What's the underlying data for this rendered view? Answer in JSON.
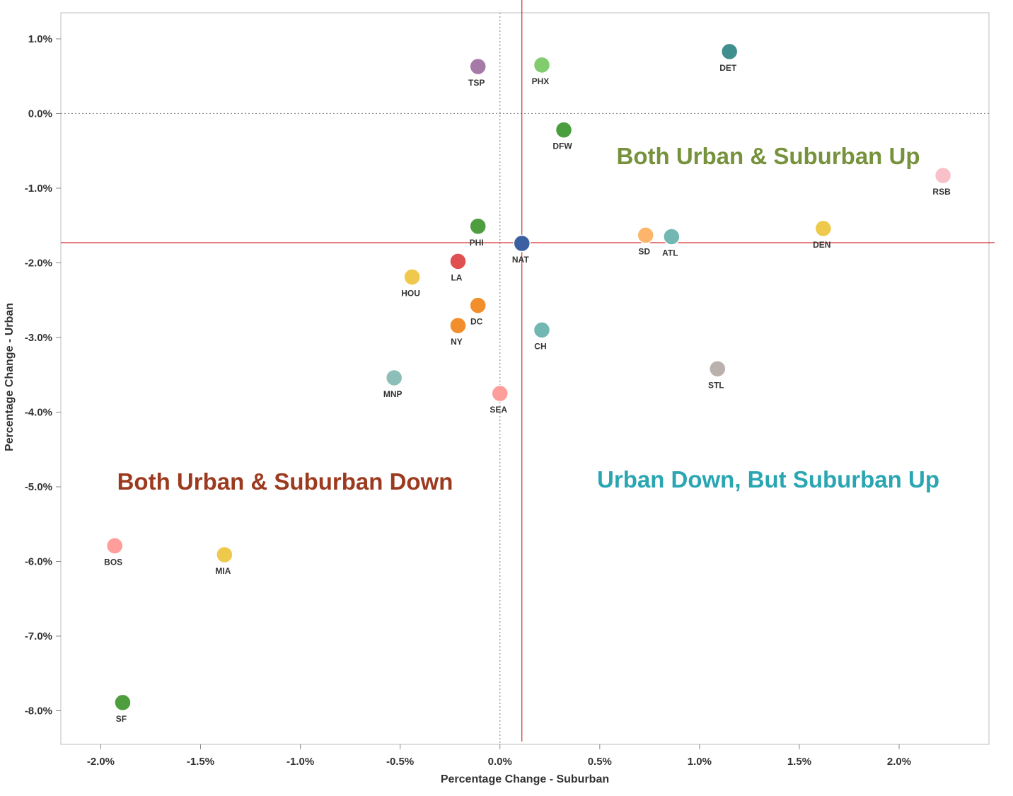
{
  "chart_data": {
    "type": "scatter",
    "xlabel": "Percentage Change - Suburban",
    "ylabel": "Percentage Change - Urban",
    "xlim": [
      -2.2,
      2.45
    ],
    "ylim": [
      -8.45,
      1.35
    ],
    "x_ticks": [
      -2.0,
      -1.5,
      -1.0,
      -0.5,
      0.0,
      0.5,
      1.0,
      1.5,
      2.0
    ],
    "x_tick_labels": [
      "-2.0%",
      "-1.5%",
      "-1.0%",
      "-0.5%",
      "0.0%",
      "0.5%",
      "1.0%",
      "1.5%",
      "2.0%"
    ],
    "y_ticks": [
      1.0,
      0.0,
      -1.0,
      -2.0,
      -3.0,
      -4.0,
      -5.0,
      -6.0,
      -7.0,
      -8.0
    ],
    "y_tick_labels": [
      "1.0%",
      "0.0%",
      "-1.0%",
      "-2.0%",
      "-3.0%",
      "-4.0%",
      "-5.0%",
      "-6.0%",
      "-7.0%",
      "-8.0%"
    ],
    "zero_lines": {
      "x": 0.0,
      "y": 0.0,
      "color": "#888888"
    },
    "reference_lines": {
      "x": 0.11,
      "y": -1.73,
      "color": "#cc0000"
    },
    "grid": false,
    "points": [
      {
        "label": "TSP",
        "x": -0.11,
        "y": 0.63,
        "color": "#a67aa7"
      },
      {
        "label": "PHX",
        "x": 0.21,
        "y": 0.65,
        "color": "#82cc70"
      },
      {
        "label": "DET",
        "x": 1.15,
        "y": 0.83,
        "color": "#3f8f8c"
      },
      {
        "label": "DFW",
        "x": 0.32,
        "y": -0.22,
        "color": "#4a9e3f"
      },
      {
        "label": "RSB",
        "x": 2.22,
        "y": -0.83,
        "color": "#f8c1ca"
      },
      {
        "label": "PHI",
        "x": -0.11,
        "y": -1.51,
        "color": "#4e9d3f"
      },
      {
        "label": "NAT",
        "x": 0.11,
        "y": -1.74,
        "color": "#3b5fa0"
      },
      {
        "label": "SD",
        "x": 0.73,
        "y": -1.63,
        "color": "#fdb56c"
      },
      {
        "label": "ATL",
        "x": 0.86,
        "y": -1.65,
        "color": "#72b7b2"
      },
      {
        "label": "DEN",
        "x": 1.62,
        "y": -1.54,
        "color": "#efc94c"
      },
      {
        "label": "LA",
        "x": -0.21,
        "y": -1.98,
        "color": "#e05050"
      },
      {
        "label": "HOU",
        "x": -0.44,
        "y": -2.19,
        "color": "#efc94c"
      },
      {
        "label": "DC",
        "x": -0.11,
        "y": -2.57,
        "color": "#f28e2b"
      },
      {
        "label": "NY",
        "x": -0.21,
        "y": -2.84,
        "color": "#f28e2b"
      },
      {
        "label": "CH",
        "x": 0.21,
        "y": -2.9,
        "color": "#72b7b2"
      },
      {
        "label": "STL",
        "x": 1.09,
        "y": -3.42,
        "color": "#bab0ac"
      },
      {
        "label": "MNP",
        "x": -0.53,
        "y": -3.54,
        "color": "#8cbfb8"
      },
      {
        "label": "SEA",
        "x": 0.0,
        "y": -3.75,
        "color": "#ff9d9a"
      },
      {
        "label": "BOS",
        "x": -1.93,
        "y": -5.79,
        "color": "#ff9d9a"
      },
      {
        "label": "MIA",
        "x": -1.38,
        "y": -5.91,
        "color": "#efc94c"
      },
      {
        "label": "SF",
        "x": -1.89,
        "y": -7.89,
        "color": "#4e9d3f"
      }
    ],
    "annotations": [
      {
        "text": "Both Urban & Suburban Up",
        "color": "#76923c"
      },
      {
        "text": "Both Urban & Suburban Down",
        "color": "#9c3a1f"
      },
      {
        "text": "Urban Down, But Suburban Up",
        "color": "#2aa6b2"
      }
    ]
  }
}
